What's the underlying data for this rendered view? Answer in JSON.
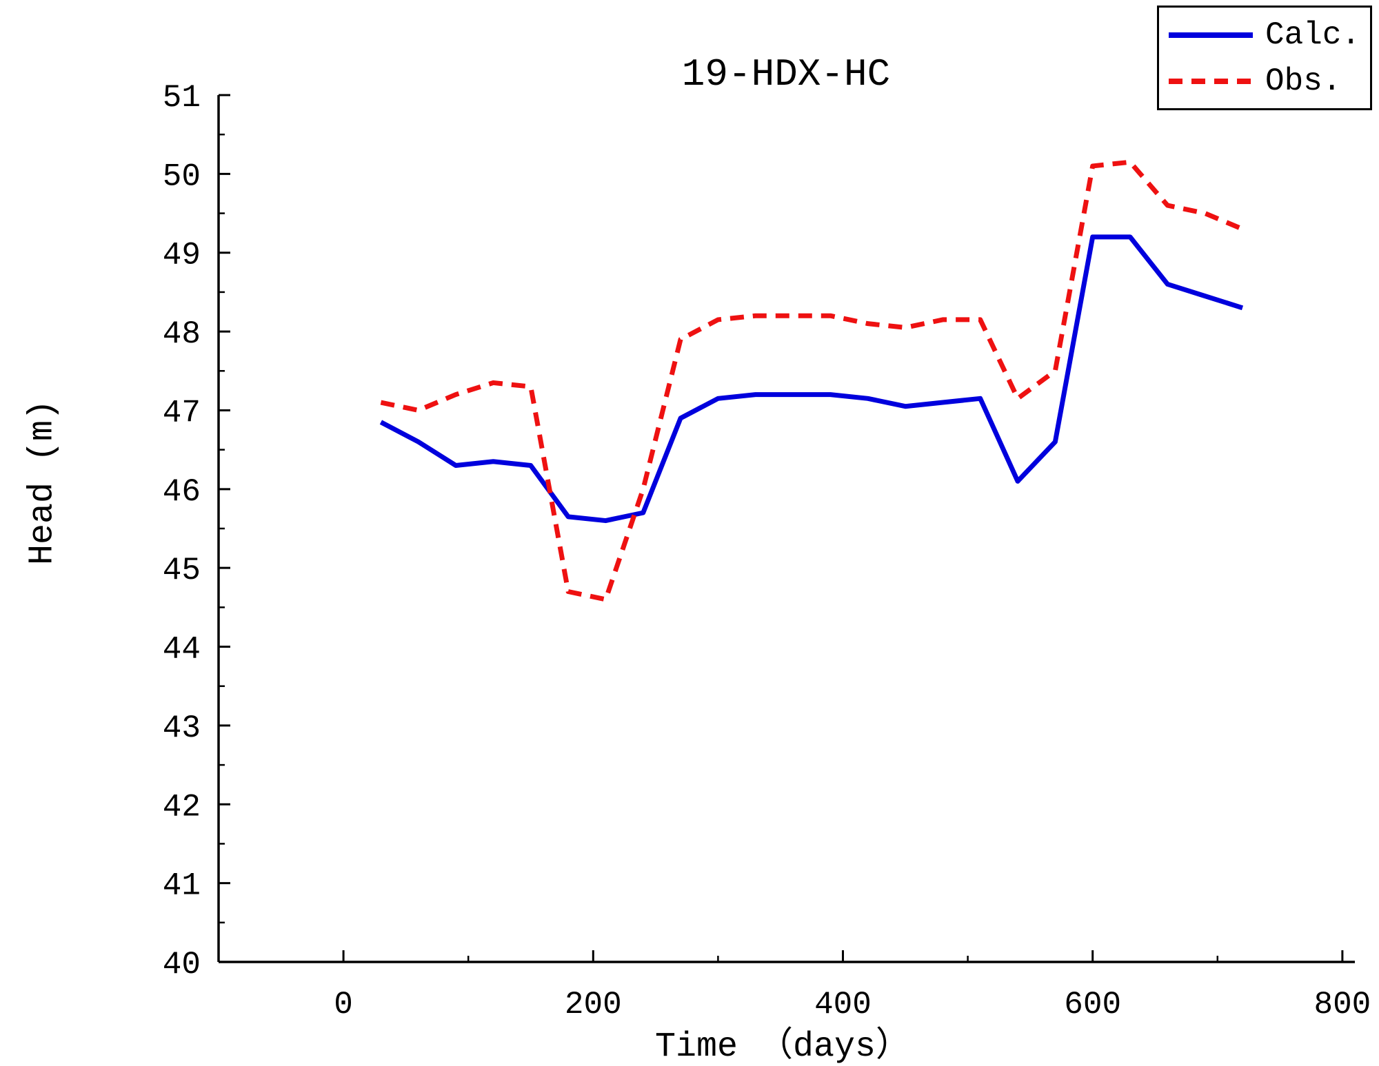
{
  "title": "19-HDX-HC",
  "axes": {
    "xlabel": "Time （days）",
    "ylabel": "Head (m)"
  },
  "legend": {
    "items": [
      {
        "label": "Calc.",
        "color": "#0000DD",
        "dash": "solid"
      },
      {
        "label": "Obs.",
        "color": "#EE1111",
        "dash": "dashed"
      }
    ]
  },
  "chart_data": {
    "type": "line",
    "title": "19-HDX-HC",
    "xlabel": "Time (days)",
    "ylabel": "Head (m)",
    "xlim": [
      -100,
      810
    ],
    "ylim": [
      40,
      51
    ],
    "x_ticks": [
      0,
      200,
      400,
      600,
      800
    ],
    "x_minor_ticks": [
      100,
      300,
      500,
      700
    ],
    "y_ticks": [
      40,
      41,
      42,
      43,
      44,
      45,
      46,
      47,
      48,
      49,
      50,
      51
    ],
    "y_minor_ticks": [
      40.5,
      41.5,
      42.5,
      43.5,
      44.5,
      45.5,
      46.5,
      47.5,
      48.5,
      49.5,
      50.5
    ],
    "grid": false,
    "legend_position": "top-right",
    "x": [
      30,
      60,
      90,
      120,
      150,
      180,
      210,
      240,
      270,
      300,
      330,
      360,
      390,
      420,
      450,
      480,
      510,
      540,
      570,
      600,
      630,
      660,
      690,
      720
    ],
    "series": [
      {
        "name": "Calc.",
        "color": "#0000DD",
        "style": "solid",
        "values": [
          46.85,
          46.6,
          46.3,
          46.35,
          46.3,
          45.65,
          45.6,
          45.7,
          46.9,
          47.15,
          47.2,
          47.2,
          47.2,
          47.15,
          47.05,
          47.1,
          47.15,
          46.1,
          46.6,
          49.2,
          49.2,
          48.6,
          48.45,
          48.3
        ]
      },
      {
        "name": "Obs.",
        "color": "#EE1111",
        "style": "dashed",
        "values": [
          47.1,
          47.0,
          47.2,
          47.35,
          47.3,
          44.7,
          44.6,
          46.0,
          47.9,
          48.15,
          48.2,
          48.2,
          48.2,
          48.1,
          48.05,
          48.15,
          48.15,
          47.15,
          47.5,
          50.1,
          50.15,
          49.6,
          49.5,
          49.3
        ]
      }
    ]
  }
}
